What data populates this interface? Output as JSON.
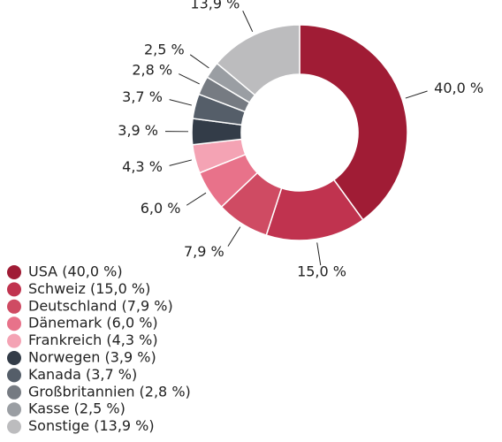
{
  "chart_data": {
    "type": "donut",
    "categories": [
      "USA (40,0 %)",
      "Schweiz (15,0 %)",
      "Deutschland (7,9 %)",
      "Dänemark (6,0 %)",
      "Frankreich (4,3 %)",
      "Norwegen (3,9 %)",
      "Kanada (3,7 %)",
      "Großbritannien (2,8 %)",
      "Kasse (2,5 %)",
      "Sonstige (13,9 %)"
    ],
    "values": [
      40.0,
      15.0,
      7.9,
      6.0,
      4.3,
      3.9,
      3.7,
      2.8,
      2.5,
      13.9
    ],
    "value_labels": [
      "40,0 %",
      "15,0 %",
      "7,9 %",
      "6,0 %",
      "4,3 %",
      "3,9 %",
      "3,7 %",
      "2,8 %",
      "2,5 %",
      "13,9 %"
    ],
    "colors": [
      "#a01c35",
      "#c0334f",
      "#cf4b63",
      "#e8728a",
      "#f4a3b4",
      "#333c48",
      "#555e69",
      "#767b82",
      "#9a9ea3",
      "#bcbcbe"
    ],
    "legend": "bottom-left"
  }
}
